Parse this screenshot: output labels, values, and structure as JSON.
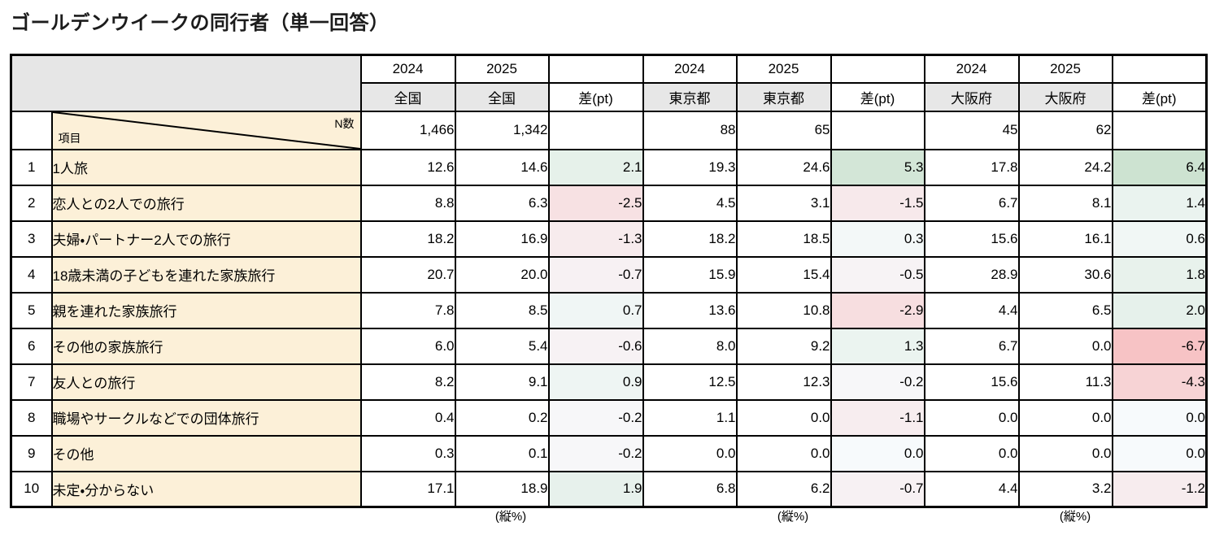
{
  "title": "ゴールデンウイークの同行者（単一回答）",
  "table": {
    "corner": {
      "n_label": "N数",
      "item_label": "項目"
    },
    "groups": [
      {
        "region": "全国",
        "years": [
          "2024",
          "2025"
        ],
        "diff_label": "差(pt)",
        "n": [
          "1,466",
          "1,342"
        ]
      },
      {
        "region": "東京都",
        "years": [
          "2024",
          "2025"
        ],
        "diff_label": "差(pt)",
        "n": [
          "88",
          "65"
        ]
      },
      {
        "region": "大阪府",
        "years": [
          "2024",
          "2025"
        ],
        "diff_label": "差(pt)",
        "n": [
          "45",
          "62"
        ]
      }
    ],
    "rows": [
      {
        "no": "1",
        "item": "1人旅",
        "values": [
          "12.6",
          "14.6",
          "2.1",
          "19.3",
          "24.6",
          "5.3",
          "17.8",
          "24.2",
          "6.4"
        ]
      },
      {
        "no": "2",
        "item": "恋人との2人での旅行",
        "values": [
          "8.8",
          "6.3",
          "-2.5",
          "4.5",
          "3.1",
          "-1.5",
          "6.7",
          "8.1",
          "1.4"
        ]
      },
      {
        "no": "3",
        "item": "夫婦・パートナー2人での旅行",
        "values": [
          "18.2",
          "16.9",
          "-1.3",
          "18.2",
          "18.5",
          "0.3",
          "15.6",
          "16.1",
          "0.6"
        ]
      },
      {
        "no": "4",
        "item": "18歳未満の子どもを連れた家族旅行",
        "values": [
          "20.7",
          "20.0",
          "-0.7",
          "15.9",
          "15.4",
          "-0.5",
          "28.9",
          "30.6",
          "1.8"
        ]
      },
      {
        "no": "5",
        "item": "親を連れた家族旅行",
        "values": [
          "7.8",
          "8.5",
          "0.7",
          "13.6",
          "10.8",
          "-2.9",
          "4.4",
          "6.5",
          "2.0"
        ]
      },
      {
        "no": "6",
        "item": "その他の家族旅行",
        "values": [
          "6.0",
          "5.4",
          "-0.6",
          "8.0",
          "9.2",
          "1.3",
          "6.7",
          "0.0",
          "-6.7"
        ]
      },
      {
        "no": "7",
        "item": "友人との旅行",
        "values": [
          "8.2",
          "9.1",
          "0.9",
          "12.5",
          "12.3",
          "-0.2",
          "15.6",
          "11.3",
          "-4.3"
        ]
      },
      {
        "no": "8",
        "item": "職場やサークルなどでの団体旅行",
        "values": [
          "0.4",
          "0.2",
          "-0.2",
          "1.1",
          "0.0",
          "-1.1",
          "0.0",
          "0.0",
          "0.0"
        ]
      },
      {
        "no": "9",
        "item": "その他",
        "values": [
          "0.3",
          "0.1",
          "-0.2",
          "0.0",
          "0.0",
          "0.0",
          "0.0",
          "0.0",
          "0.0"
        ]
      },
      {
        "no": "10",
        "item": "未定・分からない",
        "values": [
          "17.1",
          "18.9",
          "1.9",
          "6.8",
          "6.2",
          "-0.7",
          "4.4",
          "3.2",
          "-1.2"
        ]
      }
    ],
    "footer_note": "(縦%)"
  },
  "colors": {
    "header_gray": "#e7e7e7",
    "item_cream": "#fcf0d8",
    "border": "#000000",
    "diff_zero": "#f7fafc",
    "diff_positive_max": "#cbe2cf",
    "diff_negative_max": "#f7c3c5",
    "diff_scale_max": 6.7
  },
  "chart_data": {
    "type": "table",
    "title": "ゴールデンウイークの同行者（単一回答）",
    "unit": "縦%",
    "columns": [
      "2024 全国",
      "2025 全国",
      "差(pt) 全国",
      "2024 東京都",
      "2025 東京都",
      "差(pt) 東京都",
      "2024 大阪府",
      "2025 大阪府",
      "差(pt) 大阪府"
    ],
    "n_counts": {
      "全国": [
        1466,
        1342
      ],
      "東京都": [
        88,
        65
      ],
      "大阪府": [
        45,
        62
      ]
    },
    "items": [
      "1人旅",
      "恋人との2人での旅行",
      "夫婦・パートナー2人での旅行",
      "18歳未満の子どもを連れた家族旅行",
      "親を連れた家族旅行",
      "その他の家族旅行",
      "友人との旅行",
      "職場やサークルなどでの団体旅行",
      "その他",
      "未定・分からない"
    ],
    "values": [
      [
        12.6,
        14.6,
        2.1,
        19.3,
        24.6,
        5.3,
        17.8,
        24.2,
        6.4
      ],
      [
        8.8,
        6.3,
        -2.5,
        4.5,
        3.1,
        -1.5,
        6.7,
        8.1,
        1.4
      ],
      [
        18.2,
        16.9,
        -1.3,
        18.2,
        18.5,
        0.3,
        15.6,
        16.1,
        0.6
      ],
      [
        20.7,
        20.0,
        -0.7,
        15.9,
        15.4,
        -0.5,
        28.9,
        30.6,
        1.8
      ],
      [
        7.8,
        8.5,
        0.7,
        13.6,
        10.8,
        -2.9,
        4.4,
        6.5,
        2.0
      ],
      [
        6.0,
        5.4,
        -0.6,
        8.0,
        9.2,
        1.3,
        6.7,
        0.0,
        -6.7
      ],
      [
        8.2,
        9.1,
        0.9,
        12.5,
        12.3,
        -0.2,
        15.6,
        11.3,
        -4.3
      ],
      [
        0.4,
        0.2,
        -0.2,
        1.1,
        0.0,
        -1.1,
        0.0,
        0.0,
        0.0
      ],
      [
        0.3,
        0.1,
        -0.2,
        0.0,
        0.0,
        0.0,
        0.0,
        0.0,
        0.0
      ],
      [
        17.1,
        18.9,
        1.9,
        6.8,
        6.2,
        -0.7,
        4.4,
        3.2,
        -1.2
      ]
    ]
  }
}
